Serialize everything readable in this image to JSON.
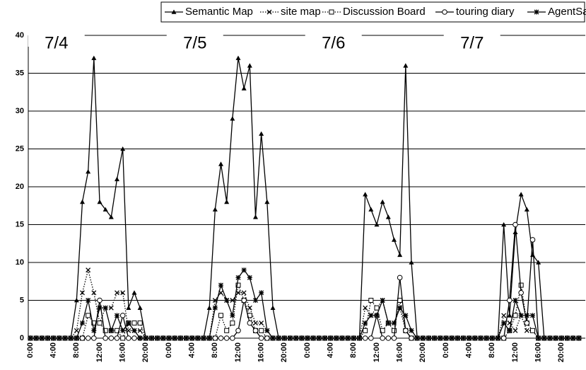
{
  "chart_data": {
    "type": "line",
    "annotations": [
      "7/4",
      "7/5",
      "7/6",
      "7/7"
    ],
    "categories": [
      "0:00",
      null,
      null,
      null,
      "4:00",
      null,
      null,
      null,
      "8:00",
      null,
      null,
      null,
      "12:00",
      null,
      null,
      null,
      "16:00",
      null,
      null,
      null,
      "20:00",
      null,
      null,
      null,
      "0:00",
      null,
      null,
      null,
      "4:00",
      null,
      null,
      null,
      "8:00",
      null,
      null,
      null,
      "12:00",
      null,
      null,
      null,
      "16:00",
      null,
      null,
      null,
      "20:00",
      null,
      null,
      null,
      "0:00",
      null,
      null,
      null,
      "4:00",
      null,
      null,
      null,
      "8:00",
      null,
      null,
      null,
      "12:00",
      null,
      null,
      null,
      "16:00",
      null,
      null,
      null,
      "20:00",
      null,
      null,
      null,
      "0:00",
      null,
      null,
      null,
      "4:00",
      null,
      null,
      null,
      "8:00",
      null,
      null,
      null,
      "12:00",
      null,
      null,
      null,
      "16:00",
      null,
      null,
      null,
      "20:00",
      null,
      null,
      null
    ],
    "series": [
      {
        "name": "Semantic Map",
        "color": "#000000",
        "marker": "triangle",
        "dash": "solid",
        "values": [
          0,
          0,
          0,
          0,
          0,
          0,
          0,
          0,
          5,
          18,
          22,
          37,
          18,
          17,
          16,
          21,
          25,
          4,
          6,
          4,
          0,
          0,
          0,
          0,
          0,
          0,
          0,
          0,
          0,
          0,
          0,
          4,
          17,
          23,
          18,
          29,
          37,
          33,
          36,
          16,
          27,
          18,
          4,
          0,
          0,
          0,
          0,
          0,
          0,
          0,
          0,
          0,
          0,
          0,
          0,
          0,
          0,
          0,
          19,
          17,
          15,
          18,
          16,
          13,
          11,
          36,
          10,
          0,
          0,
          0,
          0,
          0,
          0,
          0,
          0,
          0,
          0,
          0,
          0,
          0,
          0,
          0,
          15,
          3,
          14,
          19,
          17,
          11,
          10,
          0,
          0,
          0,
          0,
          0,
          0,
          0
        ]
      },
      {
        "name": "site map",
        "color": "#000000",
        "marker": "cross",
        "dash": "dotted",
        "values": [
          0,
          0,
          0,
          0,
          0,
          0,
          0,
          0,
          1,
          6,
          9,
          6,
          2,
          4,
          4,
          6,
          6,
          1,
          1,
          1,
          0,
          0,
          0,
          0,
          0,
          0,
          0,
          0,
          0,
          0,
          0,
          0,
          5,
          6,
          5,
          5,
          6,
          6,
          4,
          2,
          2,
          1,
          0,
          0,
          0,
          0,
          0,
          0,
          0,
          0,
          0,
          0,
          0,
          0,
          0,
          0,
          0,
          0,
          4,
          3,
          4,
          5,
          2,
          2,
          4,
          1,
          0,
          0,
          0,
          0,
          0,
          0,
          0,
          0,
          0,
          0,
          0,
          0,
          0,
          0,
          0,
          0,
          3,
          2,
          1,
          3,
          1,
          1,
          0,
          0,
          0,
          0,
          0,
          0,
          0,
          0
        ]
      },
      {
        "name": "Discussion Board",
        "color": "#000000",
        "marker": "square",
        "dash": "dotted",
        "values": [
          0,
          0,
          0,
          0,
          0,
          0,
          0,
          0,
          0,
          0,
          3,
          2,
          2,
          1,
          1,
          1,
          0,
          2,
          2,
          2,
          0,
          0,
          0,
          0,
          0,
          0,
          0,
          0,
          0,
          0,
          0,
          0,
          0,
          3,
          1,
          2,
          7,
          5,
          3,
          1,
          1,
          0,
          0,
          0,
          0,
          0,
          0,
          0,
          0,
          0,
          0,
          0,
          0,
          0,
          0,
          0,
          0,
          0,
          1,
          5,
          4,
          1,
          2,
          1,
          5,
          1,
          0,
          0,
          0,
          0,
          0,
          0,
          0,
          0,
          0,
          0,
          0,
          0,
          0,
          0,
          0,
          0,
          0,
          1,
          3,
          7,
          2,
          1,
          0,
          0,
          0,
          0,
          0,
          0,
          0,
          0
        ]
      },
      {
        "name": "touring diary",
        "color": "#000000",
        "marker": "circle",
        "dash": "solid",
        "values": [
          0,
          0,
          0,
          0,
          0,
          0,
          0,
          0,
          0,
          0,
          0,
          0,
          5,
          0,
          0,
          0,
          3,
          0,
          0,
          0,
          0,
          0,
          0,
          0,
          0,
          0,
          0,
          0,
          0,
          0,
          0,
          0,
          0,
          0,
          0,
          0,
          1,
          5,
          2,
          1,
          0,
          0,
          0,
          0,
          0,
          0,
          0,
          0,
          0,
          0,
          0,
          0,
          0,
          0,
          0,
          0,
          0,
          0,
          0,
          0,
          3,
          0,
          0,
          0,
          8,
          1,
          0,
          0,
          0,
          0,
          0,
          0,
          0,
          0,
          0,
          0,
          0,
          0,
          0,
          0,
          0,
          0,
          0,
          5,
          15,
          6,
          2,
          13,
          0,
          0,
          0,
          0,
          0,
          0,
          0,
          0
        ]
      },
      {
        "name": "AgentSalon",
        "color": "#000000",
        "marker": "star",
        "dash": "solid",
        "values": [
          0,
          0,
          0,
          0,
          0,
          0,
          0,
          0,
          0,
          2,
          5,
          1,
          4,
          4,
          1,
          3,
          1,
          2,
          1,
          0,
          0,
          0,
          0,
          0,
          0,
          0,
          0,
          0,
          0,
          0,
          0,
          0,
          4,
          7,
          5,
          3,
          8,
          9,
          8,
          5,
          6,
          1,
          0,
          0,
          0,
          0,
          0,
          0,
          0,
          0,
          0,
          0,
          0,
          0,
          0,
          0,
          0,
          0,
          2,
          3,
          3,
          5,
          2,
          2,
          4,
          3,
          1,
          0,
          0,
          0,
          0,
          0,
          0,
          0,
          0,
          0,
          0,
          0,
          0,
          0,
          0,
          0,
          2,
          1,
          5,
          3,
          3,
          3,
          0,
          0,
          0,
          0,
          0,
          0,
          0,
          0
        ]
      }
    ],
    "ylim": [
      0,
      40
    ],
    "yticks": [
      0,
      5,
      10,
      15,
      20,
      25,
      30,
      35,
      40
    ],
    "grid": true,
    "legend": "top"
  }
}
